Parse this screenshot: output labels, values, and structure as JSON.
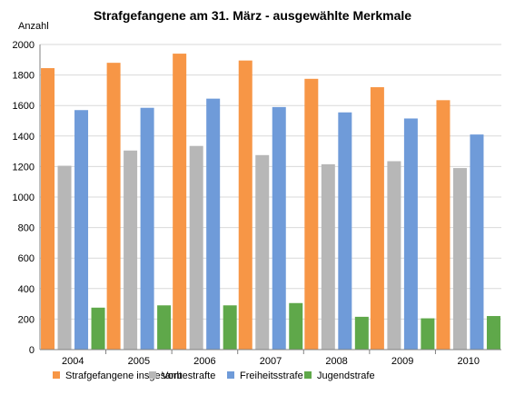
{
  "chart_data": {
    "type": "bar",
    "title": "Strafgefangene am 31. März - ausgewählte Merkmale",
    "ylabel": "Anzahl",
    "xlabel": "",
    "ylim": [
      0,
      2000
    ],
    "yticks": [
      0,
      200,
      400,
      600,
      800,
      1000,
      1200,
      1400,
      1600,
      1800,
      2000
    ],
    "grid": "horizontal",
    "legend": "bottom",
    "categories": [
      "2004",
      "2005",
      "2006",
      "2007",
      "2008",
      "2009",
      "2010"
    ],
    "series": [
      {
        "name": "Strafgefangene insgesamt",
        "color": "#f79646",
        "values": [
          1845,
          1880,
          1940,
          1895,
          1775,
          1720,
          1635
        ]
      },
      {
        "name": "Vorbestrafte",
        "color": "#b7b7b7",
        "values": [
          1205,
          1305,
          1335,
          1275,
          1215,
          1235,
          1190
        ]
      },
      {
        "name": "Freiheitsstrafe",
        "color": "#6f9bd9",
        "values": [
          1570,
          1585,
          1645,
          1590,
          1555,
          1515,
          1410
        ]
      },
      {
        "name": "Jugendstrafe",
        "color": "#5fa84a",
        "values": [
          275,
          290,
          290,
          305,
          215,
          205,
          220
        ]
      }
    ]
  }
}
